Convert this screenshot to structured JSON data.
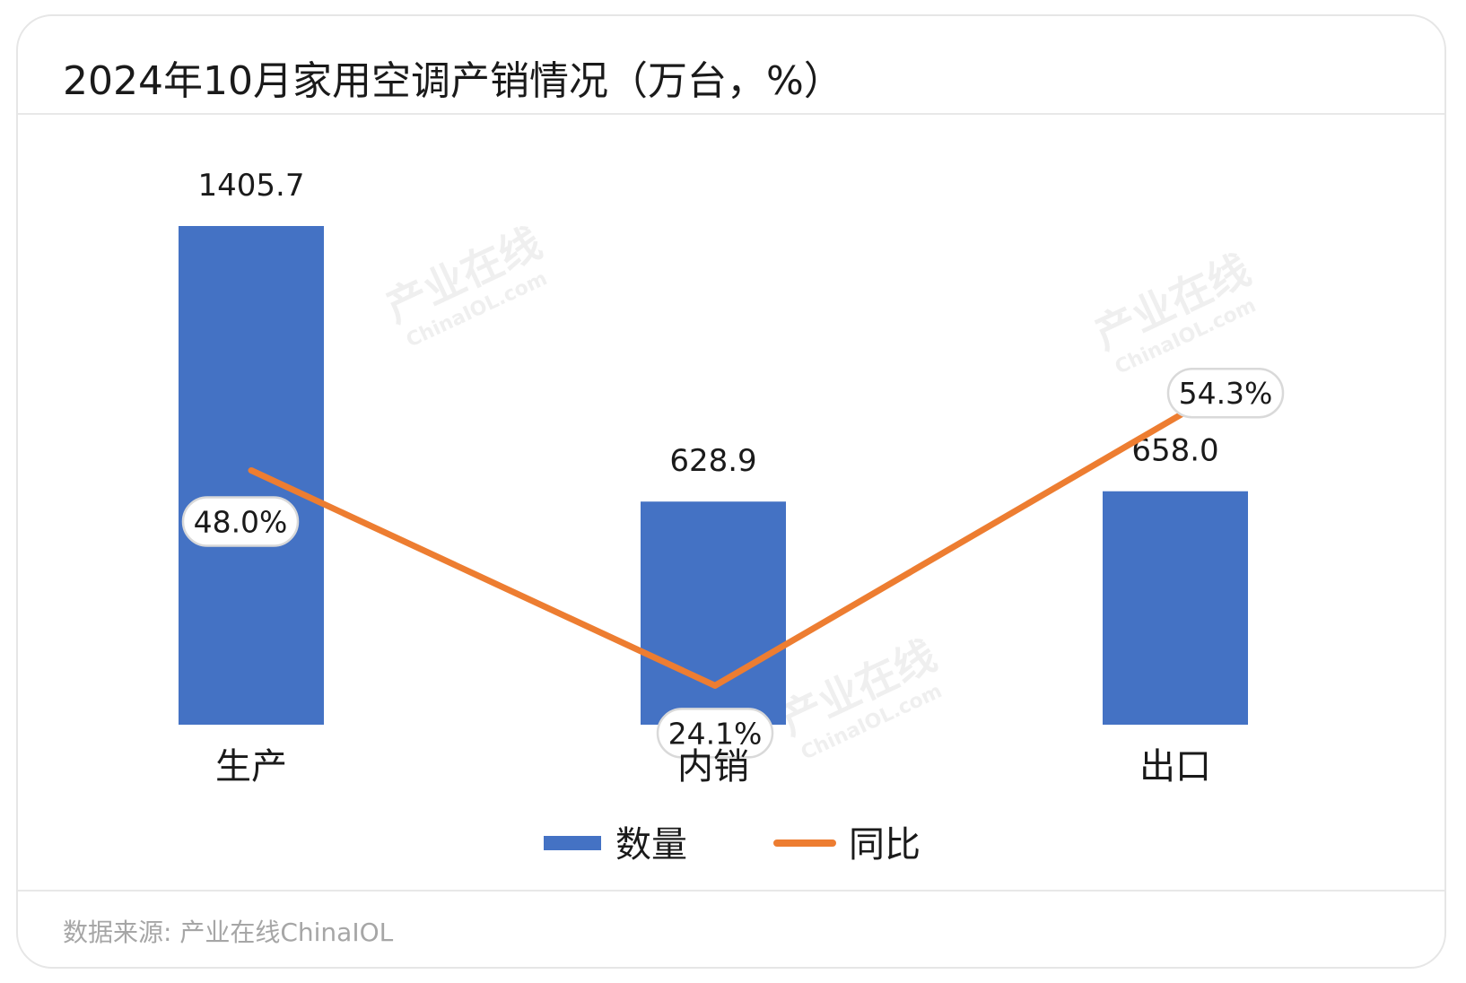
{
  "title": "2024年10月家用空调产销情况（万台，%）",
  "source": "数据来源: 产业在线ChinaIOL",
  "watermark": {
    "cn": "产业在线",
    "en": "ChinaIOL.com"
  },
  "chart_data": {
    "type": "bar",
    "categories": [
      "生产",
      "内销",
      "出口"
    ],
    "series": [
      {
        "name": "数量",
        "type": "bar",
        "color": "#4472C4",
        "values": [
          1405.7,
          628.9,
          658.0
        ],
        "labels": [
          "1405.7",
          "628.9",
          "658.0"
        ]
      },
      {
        "name": "同比",
        "type": "line",
        "color": "#ED7D31",
        "values": [
          48.0,
          24.1,
          54.3
        ],
        "labels": [
          "48.0%",
          "24.1%",
          "54.3%"
        ]
      }
    ],
    "legend_position": "bottom"
  }
}
